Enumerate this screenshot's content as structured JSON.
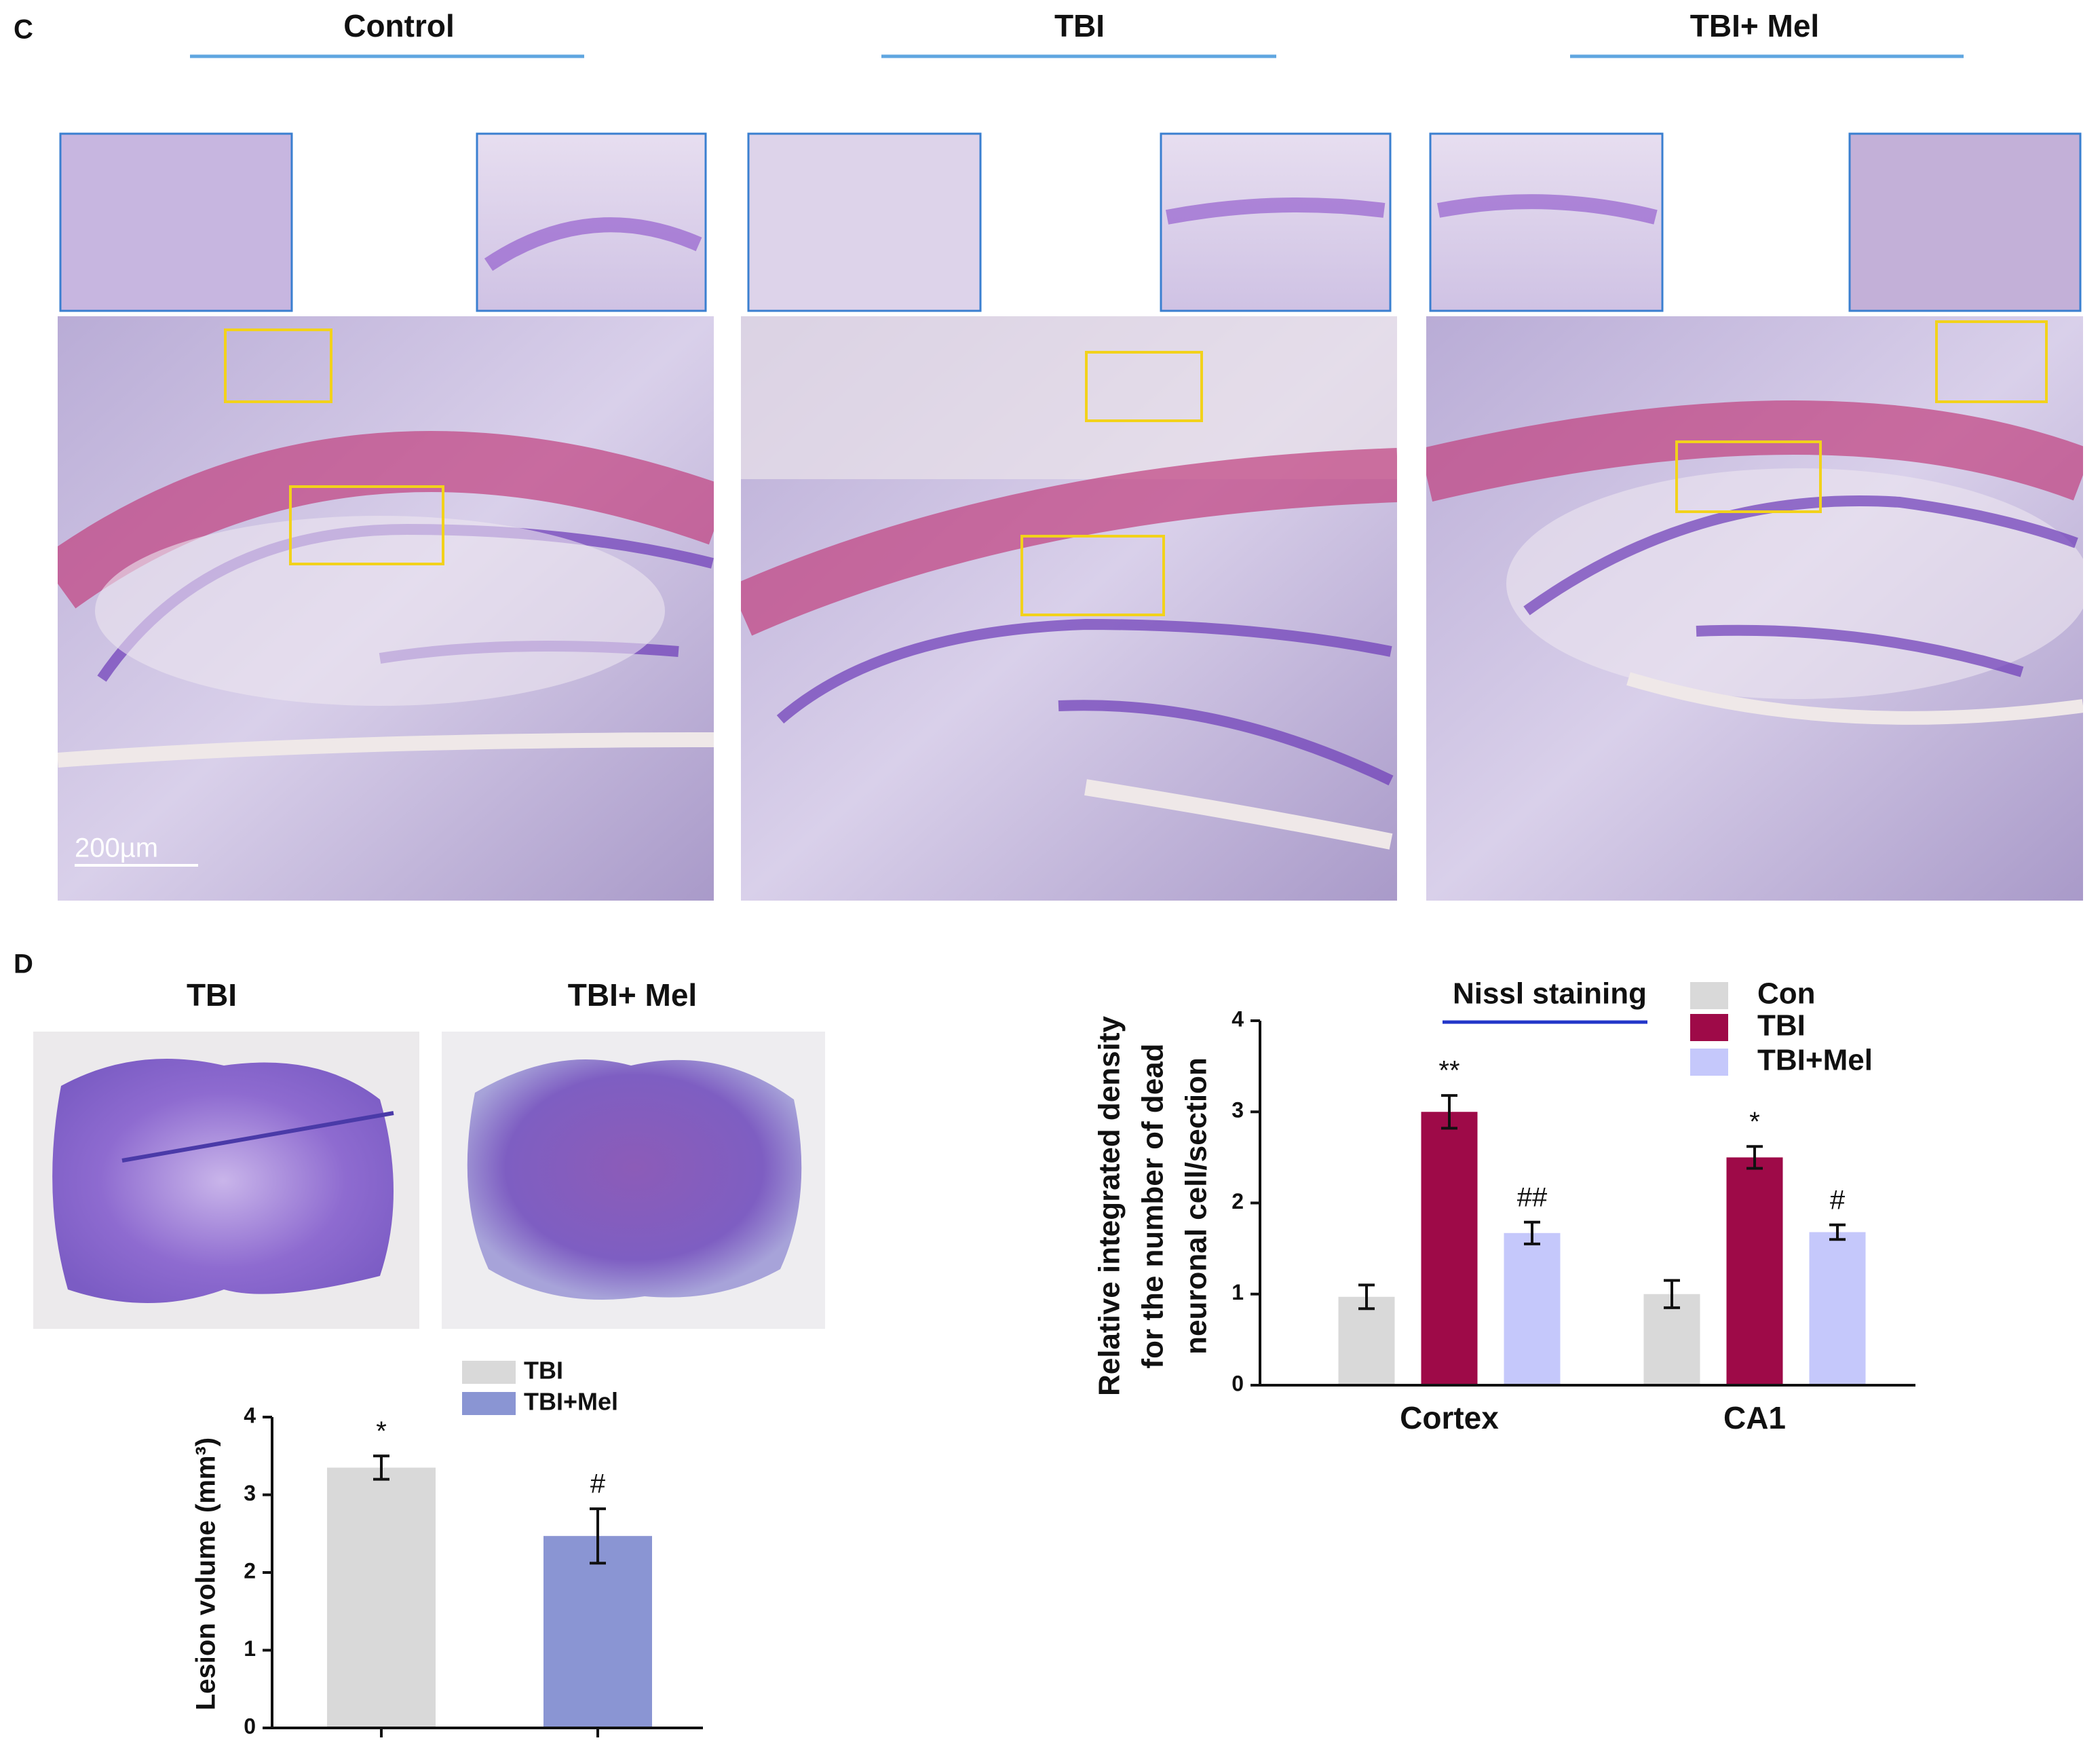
{
  "panel_c": {
    "label": "C",
    "columns": [
      "Control",
      "TBI",
      "TBI+ Mel"
    ],
    "scale_bar": "200µm"
  },
  "panel_d": {
    "label": "D",
    "images": [
      "TBI",
      "TBI+ Mel"
    ]
  },
  "chart_data": [
    {
      "type": "bar",
      "y_label": "Lesion volume (mm³)",
      "categories": [
        null,
        null
      ],
      "series": [
        {
          "name": "TBI",
          "color": "#d9d9d9",
          "values": [
            3.35,
            null
          ],
          "errors": [
            0.15,
            null
          ],
          "annotations": [
            "*",
            null
          ]
        },
        {
          "name": "TBI+Mel",
          "color": "#8a95d3",
          "values": [
            null,
            2.47
          ],
          "errors": [
            null,
            0.35
          ],
          "annotations": [
            null,
            "#"
          ]
        }
      ],
      "ylim": [
        0,
        4
      ],
      "yticks": [
        0,
        1,
        2,
        3,
        4
      ]
    },
    {
      "type": "bar",
      "title": "Nissl staining",
      "y_label": [
        "Relative integrated density",
        "for the number of dead",
        "neuronal cell/section"
      ],
      "categories": [
        "Cortex",
        "CA1"
      ],
      "series": [
        {
          "name": "Con",
          "color": "#d9d9d9",
          "values": [
            0.97,
            1.0
          ],
          "errors": [
            0.13,
            0.15
          ],
          "annotations": [
            null,
            null
          ]
        },
        {
          "name": "TBI",
          "color": "#9e0a48",
          "values": [
            3.0,
            2.5
          ],
          "errors": [
            0.18,
            0.12
          ],
          "annotations": [
            "**",
            "*"
          ]
        },
        {
          "name": "TBI+Mel",
          "color": "#c5c8fb",
          "values": [
            1.67,
            1.68
          ],
          "errors": [
            0.12,
            0.08
          ],
          "annotations": [
            "##",
            "#"
          ]
        }
      ],
      "ylim": [
        0,
        4
      ],
      "yticks": [
        0,
        1,
        2,
        3,
        4
      ]
    }
  ]
}
